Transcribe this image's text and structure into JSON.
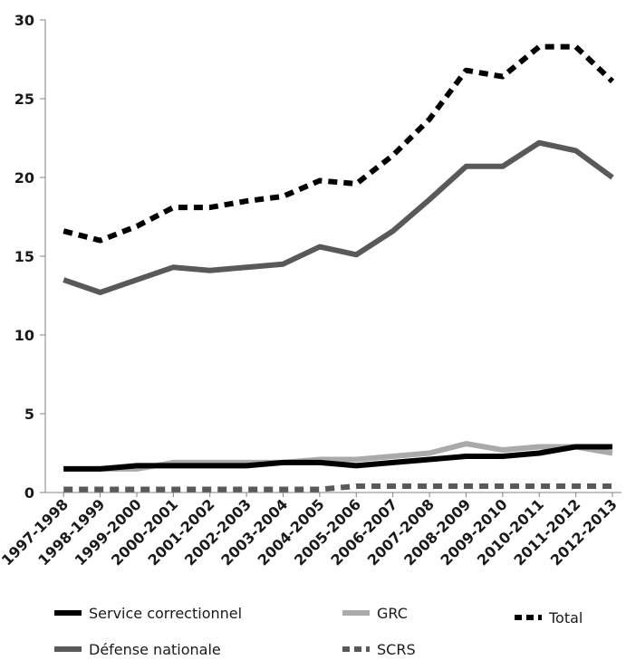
{
  "chart_data": {
    "type": "line",
    "categories": [
      "1997-1998",
      "1998-1999",
      "1999-2000",
      "2000-2001",
      "2001-2002",
      "2002-2003",
      "2003-2004",
      "2004-2005",
      "2005-2006",
      "2006-2007",
      "2007-2008",
      "2008-2009",
      "2009-2010",
      "2010-2011",
      "2011-2012",
      "2012-2013"
    ],
    "ylim": [
      0,
      30
    ],
    "yticks": [
      0,
      5,
      10,
      15,
      20,
      25,
      30
    ],
    "grid": false,
    "legend_position": "bottom",
    "series": [
      {
        "name": "Service correctionnel",
        "color": "#000000",
        "dash": "solid",
        "values": [
          1.5,
          1.5,
          1.7,
          1.7,
          1.7,
          1.7,
          1.9,
          1.9,
          1.7,
          1.9,
          2.1,
          2.3,
          2.3,
          2.5,
          2.9,
          2.9
        ]
      },
      {
        "name": "GRC",
        "color": "#aaaaaa",
        "dash": "solid",
        "values": [
          1.5,
          1.5,
          1.5,
          1.9,
          1.9,
          1.9,
          1.9,
          2.1,
          2.1,
          2.3,
          2.5,
          3.1,
          2.7,
          2.9,
          2.9,
          2.5
        ]
      },
      {
        "name": "Total",
        "color": "#000000",
        "dash": "dashed",
        "values": [
          16.6,
          16.0,
          16.9,
          18.1,
          18.1,
          18.5,
          18.8,
          19.8,
          19.6,
          21.4,
          23.7,
          26.8,
          26.4,
          28.3,
          28.3,
          26.1
        ]
      },
      {
        "name": "Défense nationale",
        "color": "#595959",
        "dash": "solid",
        "values": [
          13.5,
          12.7,
          13.5,
          14.3,
          14.1,
          14.3,
          14.5,
          15.6,
          15.1,
          16.6,
          18.6,
          20.7,
          20.7,
          22.2,
          21.7,
          20.0
        ]
      },
      {
        "name": "SCRS",
        "color": "#595959",
        "dash": "dashed",
        "values": [
          0.2,
          0.2,
          0.2,
          0.2,
          0.2,
          0.2,
          0.2,
          0.2,
          0.4,
          0.4,
          0.4,
          0.4,
          0.4,
          0.4,
          0.4,
          0.4
        ]
      }
    ]
  }
}
